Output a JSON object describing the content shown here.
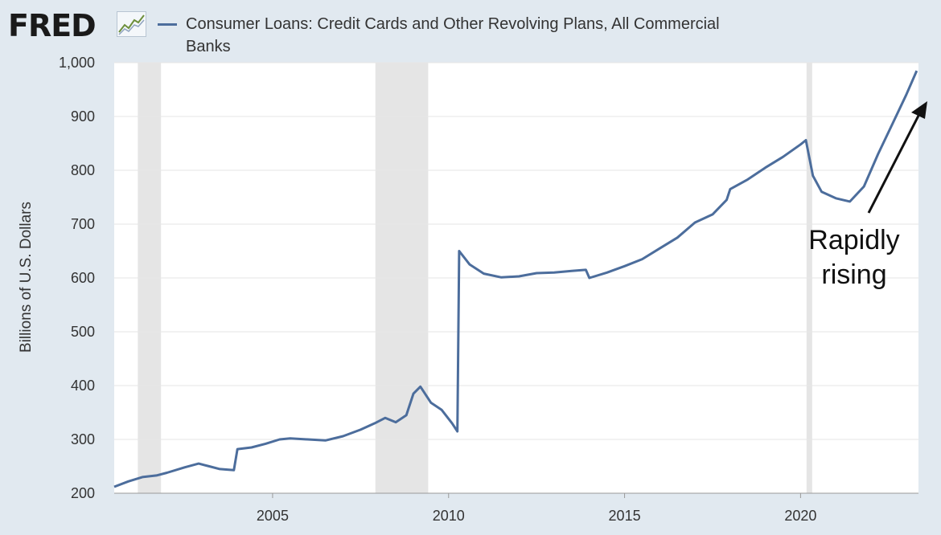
{
  "header": {
    "logo": "FRED",
    "logo_icon": "trend-line-icon",
    "series_title": "Consumer Loans: Credit Cards and Other Revolving Plans, All Commercial Banks"
  },
  "colors": {
    "background": "#e1e9f0",
    "plot_background": "#ffffff",
    "series": "#4c6d9c",
    "recession_shade": "#e5e5e5",
    "annotation": "#111111"
  },
  "chart_data": {
    "type": "line",
    "title": "Consumer Loans: Credit Cards and Other Revolving Plans, All Commercial Banks",
    "xlabel": "",
    "ylabel": "Billions of U.S. Dollars",
    "xlim": [
      2000.5,
      2023.35
    ],
    "ylim": [
      200,
      1000
    ],
    "grid": true,
    "legend_position": "top-left",
    "x_ticks": [
      2005,
      2010,
      2015,
      2020
    ],
    "x_tick_labels": [
      "2005",
      "2010",
      "2015",
      "2020"
    ],
    "y_ticks": [
      200,
      300,
      400,
      500,
      600,
      700,
      800,
      900,
      1000
    ],
    "y_tick_labels": [
      "200",
      "300",
      "400",
      "500",
      "600",
      "700",
      "800",
      "900",
      "1,000"
    ],
    "recessions": [
      [
        2001.17,
        2001.83
      ],
      [
        2007.92,
        2009.42
      ],
      [
        2020.17,
        2020.33
      ]
    ],
    "series": [
      {
        "name": "Consumer Loans: Credit Cards and Other Revolving Plans, All Commercial Banks",
        "points": [
          [
            2000.5,
            212
          ],
          [
            2000.9,
            222
          ],
          [
            2001.3,
            230
          ],
          [
            2001.7,
            233
          ],
          [
            2002.0,
            238
          ],
          [
            2002.5,
            248
          ],
          [
            2002.9,
            255
          ],
          [
            2003.2,
            250
          ],
          [
            2003.5,
            245
          ],
          [
            2003.9,
            243
          ],
          [
            2004.0,
            282
          ],
          [
            2004.4,
            285
          ],
          [
            2004.8,
            292
          ],
          [
            2005.2,
            300
          ],
          [
            2005.5,
            302
          ],
          [
            2006.0,
            300
          ],
          [
            2006.5,
            298
          ],
          [
            2007.0,
            306
          ],
          [
            2007.5,
            318
          ],
          [
            2007.9,
            330
          ],
          [
            2008.2,
            340
          ],
          [
            2008.5,
            332
          ],
          [
            2008.8,
            345
          ],
          [
            2009.0,
            385
          ],
          [
            2009.2,
            398
          ],
          [
            2009.5,
            368
          ],
          [
            2009.8,
            355
          ],
          [
            2010.1,
            330
          ],
          [
            2010.25,
            315
          ],
          [
            2010.3,
            650
          ],
          [
            2010.6,
            625
          ],
          [
            2011.0,
            608
          ],
          [
            2011.5,
            601
          ],
          [
            2012.0,
            603
          ],
          [
            2012.5,
            609
          ],
          [
            2013.0,
            610
          ],
          [
            2013.5,
            613
          ],
          [
            2013.9,
            615
          ],
          [
            2014.0,
            600
          ],
          [
            2014.5,
            610
          ],
          [
            2015.0,
            622
          ],
          [
            2015.5,
            635
          ],
          [
            2016.0,
            655
          ],
          [
            2016.5,
            675
          ],
          [
            2017.0,
            703
          ],
          [
            2017.5,
            718
          ],
          [
            2017.9,
            745
          ],
          [
            2018.0,
            765
          ],
          [
            2018.5,
            783
          ],
          [
            2019.0,
            805
          ],
          [
            2019.5,
            825
          ],
          [
            2020.0,
            848
          ],
          [
            2020.15,
            856
          ],
          [
            2020.35,
            790
          ],
          [
            2020.6,
            760
          ],
          [
            2021.0,
            748
          ],
          [
            2021.4,
            742
          ],
          [
            2021.8,
            770
          ],
          [
            2022.2,
            830
          ],
          [
            2022.6,
            885
          ],
          [
            2023.0,
            940
          ],
          [
            2023.3,
            985
          ]
        ]
      }
    ],
    "annotations": [
      {
        "text_lines": [
          "Rapidly",
          "rising"
        ],
        "arrow": true
      }
    ]
  }
}
